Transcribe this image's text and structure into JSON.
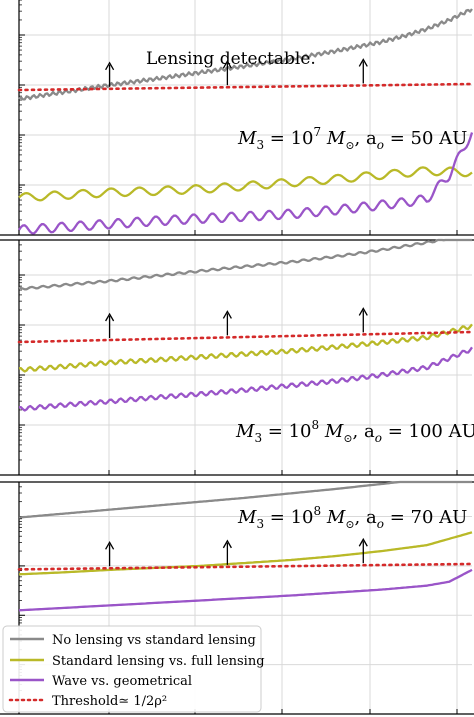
{
  "figure": {
    "colors": {
      "no_lensing": "#8a8a8a",
      "standard_full": "#b9b928",
      "wave_geo": "#9a55c8",
      "threshold": "#d42a2a",
      "grid": "#d9d9d9",
      "axes": "#000000"
    }
  },
  "chart_data": [
    {
      "type": "line",
      "panel": 1,
      "annotation": "Lensing detectable.",
      "label_main": "M",
      "label_sub": "3",
      "label_eq": " = 10",
      "label_exp": "7",
      "label_msun": "M",
      "label_sunsym": "⊙",
      "label_sep": ",  a",
      "label_sub2": "o",
      "label_rest": " = 50 AU",
      "arrows_x": [
        0.2,
        0.46,
        0.76
      ],
      "ylog_range": [
        0.0,
        4.7
      ],
      "series": [
        {
          "key": "no_lensing",
          "x": [
            0.0,
            0.1,
            0.2,
            0.3,
            0.4,
            0.5,
            0.6,
            0.7,
            0.8,
            0.85,
            0.9,
            0.95,
            1.0
          ],
          "y": [
            2.72,
            2.86,
            3.0,
            3.12,
            3.25,
            3.38,
            3.52,
            3.68,
            3.86,
            3.98,
            4.12,
            4.3,
            4.52
          ],
          "wiggle": 0.035,
          "freq": 70
        },
        {
          "key": "standard_full",
          "x": [
            0.0,
            0.1,
            0.2,
            0.3,
            0.4,
            0.5,
            0.6,
            0.7,
            0.8,
            0.9,
            0.95,
            1.0
          ],
          "y": [
            0.75,
            0.8,
            0.85,
            0.88,
            0.92,
            0.98,
            1.05,
            1.12,
            1.2,
            1.28,
            1.27,
            1.25
          ],
          "wiggle": 0.08,
          "freq": 16
        },
        {
          "key": "wave_geo",
          "x": [
            0.0,
            0.1,
            0.2,
            0.3,
            0.4,
            0.5,
            0.6,
            0.7,
            0.8,
            0.85,
            0.9,
            0.95,
            1.0
          ],
          "y": [
            0.1,
            0.16,
            0.22,
            0.28,
            0.33,
            0.37,
            0.42,
            0.5,
            0.6,
            0.65,
            0.72,
            1.2,
            2.05
          ],
          "wiggle": 0.09,
          "freq": 24
        },
        {
          "key": "threshold",
          "x": [
            0.0,
            1.0
          ],
          "y": [
            2.9,
            3.02
          ]
        }
      ]
    },
    {
      "type": "line",
      "panel": 2,
      "label_main": "M",
      "label_sub": "3",
      "label_eq": " = 10",
      "label_exp": "8",
      "label_msun": "M",
      "label_sunsym": "⊙",
      "label_sep": ",  a",
      "label_sub2": "o",
      "label_rest": " = 100 AU",
      "arrows_x": [
        0.2,
        0.46,
        0.76
      ],
      "ylog_range": [
        0.0,
        4.7
      ],
      "series": [
        {
          "key": "no_lensing",
          "x": [
            0.0,
            0.1,
            0.2,
            0.3,
            0.4,
            0.5,
            0.6,
            0.7,
            0.8,
            0.9,
            1.0
          ],
          "y": [
            3.72,
            3.8,
            3.88,
            3.98,
            4.08,
            4.17,
            4.26,
            4.37,
            4.5,
            4.65,
            4.82
          ],
          "wiggle": 0.02,
          "freq": 40
        },
        {
          "key": "standard_full",
          "x": [
            0.0,
            0.1,
            0.2,
            0.3,
            0.4,
            0.5,
            0.6,
            0.7,
            0.8,
            0.9,
            1.0
          ],
          "y": [
            2.1,
            2.17,
            2.25,
            2.3,
            2.36,
            2.42,
            2.48,
            2.56,
            2.65,
            2.75,
            2.98
          ],
          "wiggle": 0.04,
          "freq": 45
        },
        {
          "key": "wave_geo",
          "x": [
            0.0,
            0.1,
            0.2,
            0.3,
            0.4,
            0.5,
            0.6,
            0.7,
            0.8,
            0.9,
            1.0
          ],
          "y": [
            1.32,
            1.4,
            1.47,
            1.55,
            1.62,
            1.7,
            1.79,
            1.88,
            2.0,
            2.15,
            2.52
          ],
          "wiggle": 0.04,
          "freq": 45
        },
        {
          "key": "threshold",
          "x": [
            0.0,
            1.0
          ],
          "y": [
            2.66,
            2.86
          ]
        }
      ]
    },
    {
      "type": "line",
      "panel": 3,
      "label_main": "M",
      "label_sub": "3",
      "label_eq": " = 10",
      "label_exp": "8",
      "label_msun": "M",
      "label_sunsym": "⊙",
      "label_sep": ",  a",
      "label_sub2": "o",
      "label_rest": " = 70 AU",
      "arrows_x": [
        0.2,
        0.46,
        0.76
      ],
      "ylog_range": [
        0.0,
        4.7
      ],
      "series": [
        {
          "key": "no_lensing",
          "x": [
            0.0,
            0.1,
            0.2,
            0.3,
            0.4,
            0.5,
            0.6,
            0.7,
            0.8,
            0.9,
            1.0
          ],
          "y": [
            3.98,
            4.06,
            4.14,
            4.22,
            4.3,
            4.38,
            4.47,
            4.56,
            4.66,
            4.76,
            4.86
          ],
          "wiggle": 0.0,
          "freq": 1
        },
        {
          "key": "standard_full",
          "x": [
            0.0,
            0.1,
            0.2,
            0.3,
            0.4,
            0.5,
            0.6,
            0.7,
            0.8,
            0.9,
            1.0
          ],
          "y": [
            2.83,
            2.87,
            2.92,
            2.96,
            3.0,
            3.06,
            3.12,
            3.2,
            3.3,
            3.42,
            3.68
          ],
          "wiggle": 0.0,
          "freq": 1
        },
        {
          "key": "wave_geo",
          "x": [
            0.0,
            0.1,
            0.2,
            0.3,
            0.4,
            0.5,
            0.6,
            0.7,
            0.8,
            0.9,
            0.95,
            1.0
          ],
          "y": [
            2.1,
            2.15,
            2.2,
            2.25,
            2.3,
            2.35,
            2.4,
            2.46,
            2.52,
            2.6,
            2.68,
            2.92
          ],
          "wiggle": 0.0,
          "freq": 1
        },
        {
          "key": "threshold",
          "x": [
            0.0,
            1.0
          ],
          "y": [
            2.93,
            3.04
          ]
        }
      ]
    }
  ],
  "legend": {
    "items": [
      {
        "key": "no_lensing",
        "label": "No lensing vs standard lensing"
      },
      {
        "key": "standard_full",
        "label": "Standard lensing vs. full lensing"
      },
      {
        "key": "wave_geo",
        "label": "Wave vs. geometrical"
      },
      {
        "key": "threshold",
        "label": "Threshold≃ 1/2ρ²"
      }
    ]
  }
}
